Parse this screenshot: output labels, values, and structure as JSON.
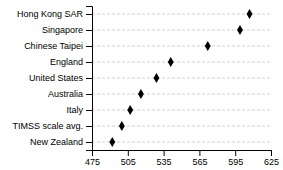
{
  "chart_data": {
    "type": "dot",
    "orientation": "horizontal",
    "categories": [
      "Hong Kong SAR",
      "Singapore",
      "Chinese Taipei",
      "England",
      "United States",
      "Australia",
      "Italy",
      "TIMSS scale avg.",
      "New Zealand"
    ],
    "values": [
      607,
      599,
      572,
      541,
      529,
      516,
      507,
      500,
      492
    ],
    "color": "#000000",
    "marker": "diamond",
    "xlim": [
      475,
      625
    ],
    "xticks": [
      475,
      505,
      535,
      565,
      595,
      625
    ],
    "grid": true
  }
}
